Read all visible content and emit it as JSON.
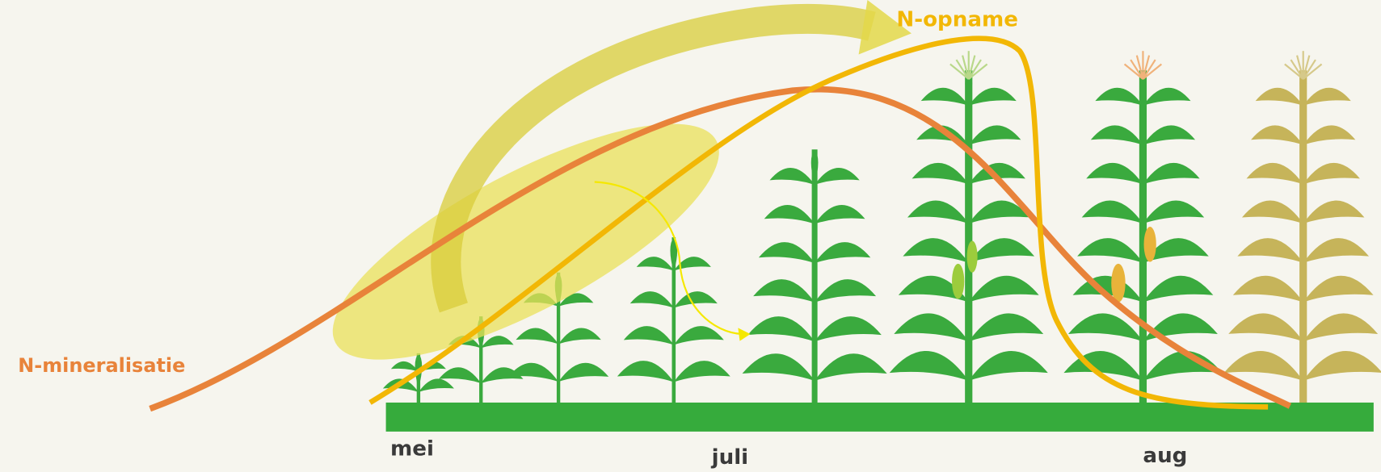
{
  "labels": {
    "uptake": "N-opname",
    "mineralization": "N-mineralisatie"
  },
  "months": [
    "mei",
    "juli",
    "aug"
  ]
}
